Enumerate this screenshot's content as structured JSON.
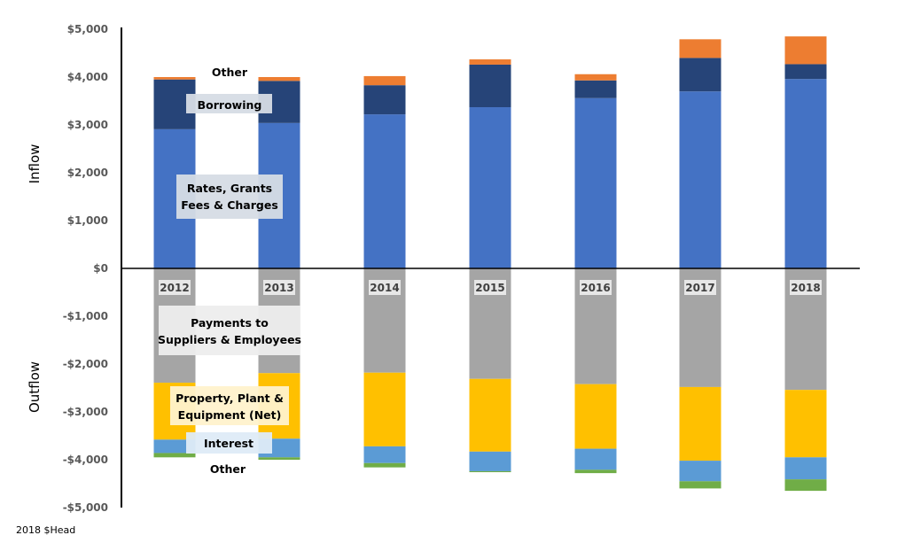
{
  "chart_data": {
    "type": "bar",
    "stacked": true,
    "title": "",
    "categories": [
      "2012",
      "2013",
      "2014",
      "2015",
      "2016",
      "2017",
      "2018"
    ],
    "ylabel_top": "Inflow",
    "ylabel_bottom": "Outflow",
    "ylim": [
      -5000,
      5000
    ],
    "yticks": [
      5000,
      4000,
      3000,
      2000,
      1000,
      0,
      -1000,
      -2000,
      -3000,
      -4000,
      -5000
    ],
    "ytick_labels": [
      "$5,000",
      "$4,000",
      "$3,000",
      "$2,000",
      "$1,000",
      "$0",
      "-$1,000",
      "-$2,000",
      "-$3,000",
      "-$4,000",
      "-$5,000"
    ],
    "grid": false,
    "legend": "none",
    "inflow_series": [
      {
        "name": "Rates, Grants Fees & Charges",
        "color": "#4472C4",
        "values": [
          2910,
          3040,
          3220,
          3370,
          3560,
          3700,
          3960
        ]
      },
      {
        "name": "Borrowing",
        "color": "#264478",
        "values": [
          1040,
          880,
          610,
          890,
          370,
          700,
          310
        ]
      },
      {
        "name": "Other",
        "color": "#ED7D31",
        "values": [
          50,
          80,
          190,
          110,
          130,
          390,
          580
        ]
      }
    ],
    "outflow_series": [
      {
        "name": "Payments to Suppliers & Employees",
        "color": "#A5A5A5",
        "values": [
          -2390,
          -2190,
          -2180,
          -2310,
          -2420,
          -2480,
          -2540
        ]
      },
      {
        "name": "Property, Plant & Equipment (Net)",
        "color": "#FFC000",
        "values": [
          -1190,
          -1370,
          -1540,
          -1520,
          -1350,
          -1540,
          -1410
        ]
      },
      {
        "name": "Interest",
        "color": "#5B9BD5",
        "values": [
          -280,
          -390,
          -350,
          -410,
          -440,
          -430,
          -460
        ]
      },
      {
        "name": "Other",
        "color": "#70AD47",
        "values": [
          -90,
          -50,
          -90,
          -20,
          -70,
          -150,
          -240
        ]
      }
    ],
    "annotations": {
      "inflow_other": "Other",
      "borrowing": "Borrowing",
      "rates_line1": "Rates, Grants",
      "rates_line2": "Fees & Charges",
      "payments_line1": "Payments to",
      "payments_line2": "Suppliers & Employees",
      "ppe_line1": "Property, Plant &",
      "ppe_line2": "Equipment (Net)",
      "interest": "Interest",
      "outflow_other": "Other"
    }
  },
  "footnote": "2018 $Head"
}
